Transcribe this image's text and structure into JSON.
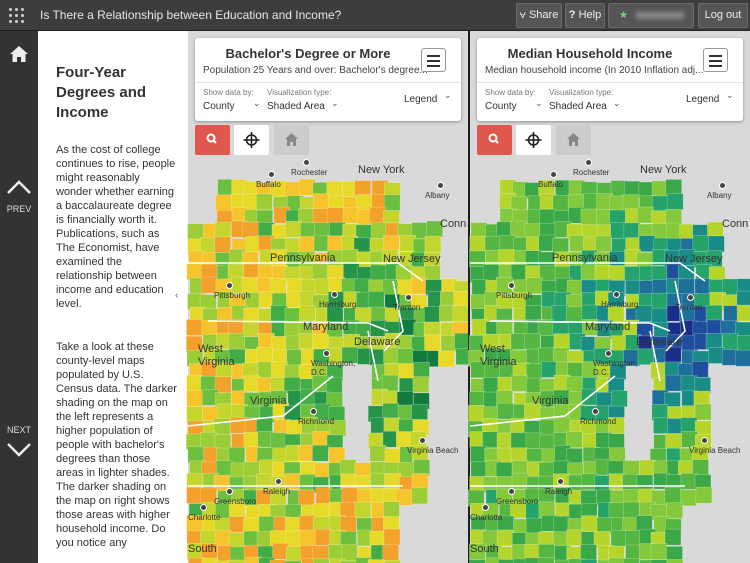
{
  "app": {
    "title": "Is There a Relationship between Education and Income?",
    "share_label": "Share",
    "help_label": "Help",
    "logout_label": "Log out"
  },
  "nav": {
    "prev_label": "PREV",
    "next_label": "NEXT"
  },
  "story": {
    "heading": "Four-Year Degrees and Income",
    "paragraph1": "As the cost of college continues to rise, people might reasonably wonder whether earning a baccalaureate degree is financially worth it. Publications, such as The Economist, have examined the relationship between income and education level.",
    "paragraph2": "Take a look at these county-level maps populated by U.S. Census data.  The darker shading on the map on the left represents a higher population of people with bachelor's degrees than those areas in lighter shades. The darker shading on the map on right shows those areas with higher household income.  Do you notice any"
  },
  "maps": [
    {
      "title": "Bachelor's Degree or More",
      "subtitle": "Population 25 Years and over: Bachelor's degree...",
      "show_by_label": "Show data by:",
      "show_by_value": "County",
      "viz_label": "Visualization type:",
      "viz_value": "Shaded Area",
      "legend_label": "Legend",
      "palette": [
        "#f2a12a",
        "#f4c42a",
        "#e6d928",
        "#c4d62d",
        "#9ccd36",
        "#6cbf3f",
        "#42ad47",
        "#26954a",
        "#137a3f"
      ],
      "places": {
        "states": [
          "New York",
          "Pennsylvania",
          "New Jersey",
          "Maryland",
          "Delaware",
          "West Virginia",
          "Virginia",
          "South",
          "Conn"
        ],
        "cities": [
          "Buffalo",
          "Rochester",
          "Albany",
          "Pittsburgh",
          "Harrisburg",
          "Trenton",
          "Washington, D.C.",
          "Richmond",
          "Virginia Beach",
          "Greensboro",
          "Raleigh",
          "Charlotte"
        ]
      }
    },
    {
      "title": "Median Household Income",
      "subtitle": "Median household income (In 2010 Inflation adj...",
      "show_by_label": "Show data by:",
      "show_by_value": "County",
      "viz_label": "Visualization type:",
      "viz_value": "Shaded Area",
      "legend_label": "Legend",
      "palette": [
        "#3aa848",
        "#56b642",
        "#84c83b",
        "#b6d52c",
        "#26a36a",
        "#1a8c86",
        "#1e6f9a",
        "#1f4f9c",
        "#1a2f8a"
      ],
      "places": {
        "states": [
          "New York",
          "Pennsylvania",
          "New Jersey",
          "Maryland",
          "Delaware",
          "West Virginia",
          "Virginia",
          "South",
          "Conn"
        ],
        "cities": [
          "Buffalo",
          "Rochester",
          "Albany",
          "Pittsburgh",
          "Harrisburg",
          "Trenton",
          "Washington, D.C.",
          "Richmond",
          "Virginia Beach",
          "Greensboro",
          "Raleigh",
          "Charlotte"
        ]
      }
    }
  ]
}
